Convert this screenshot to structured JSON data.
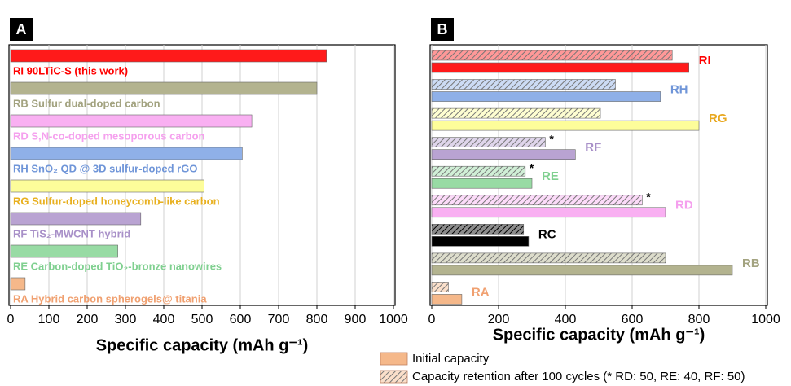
{
  "chart_data": [
    {
      "type": "bar",
      "orientation": "horizontal",
      "panel_label": "A",
      "categories": [
        "RI 90LTiC-S (this work)",
        "RB Sulfur dual-doped carbon",
        "RD S,N-co-doped mesoporous carbon",
        "RH SnO₂ QD @ 3D sulfur-doped rGO",
        "RG Sulfur-doped honeycomb-like carbon",
        "RF TiS₂-MWCNT hybrid",
        "RE Carbon-doped TiO₂-bronze nanowires",
        "RA Hybrid carbon spherogels@ titania"
      ],
      "values": [
        825,
        800,
        630,
        605,
        505,
        340,
        280,
        38
      ],
      "colors": [
        "#ff1a1a",
        "#b3b38f",
        "#f9b0f2",
        "#8fb0e8",
        "#fdfd9a",
        "#b9a3d2",
        "#98dba4",
        "#f5b88a"
      ],
      "label_colors": [
        "#ff0000",
        "#a3a380",
        "#f5a0ee",
        "#6f95d8",
        "#e8b020",
        "#a890c8",
        "#80d090",
        "#f0a070"
      ],
      "xlim": [
        0,
        1000
      ],
      "xticks": [
        0,
        100,
        200,
        300,
        400,
        500,
        600,
        700,
        800,
        900,
        1000
      ],
      "xlabel": "Specific capacity (mAh g⁻¹)",
      "grid": true
    },
    {
      "type": "bar",
      "orientation": "horizontal",
      "panel_label": "B",
      "categories": [
        "RI",
        "RH",
        "RG",
        "RF",
        "RE",
        "RD",
        "RC",
        "RB",
        "RA"
      ],
      "colors": [
        "#ff1a1a",
        "#8fb0e8",
        "#fdfd9a",
        "#b9a3d2",
        "#98dba4",
        "#f9b0f2",
        "#000000",
        "#b3b38f",
        "#f5b88a"
      ],
      "label_colors": [
        "#ff0000",
        "#6f95d8",
        "#e8a820",
        "#a890c8",
        "#80d090",
        "#f5a0ee",
        "#000000",
        "#a3a380",
        "#f0a070"
      ],
      "series": [
        {
          "name": "Initial capacity",
          "color": "#f5b88a",
          "values": [
            770,
            685,
            800,
            430,
            300,
            700,
            290,
            900,
            90
          ]
        },
        {
          "name": "Capacity retention after 100 cycles (* RD: 50, RE: 40, RF: 50)",
          "color": "#f5b88a",
          "pattern": "hatch",
          "values": [
            720,
            550,
            505,
            340,
            280,
            630,
            275,
            700,
            50
          ]
        }
      ],
      "annotations": [
        {
          "text": "*",
          "category": "RF"
        },
        {
          "text": "*",
          "category": "RE"
        },
        {
          "text": "*",
          "category": "RD"
        }
      ],
      "xlim": [
        0,
        1000
      ],
      "xticks": [
        0,
        200,
        400,
        600,
        800,
        1000
      ],
      "xlabel": "Specific capacity (mAh g⁻¹)",
      "grid": true
    }
  ]
}
